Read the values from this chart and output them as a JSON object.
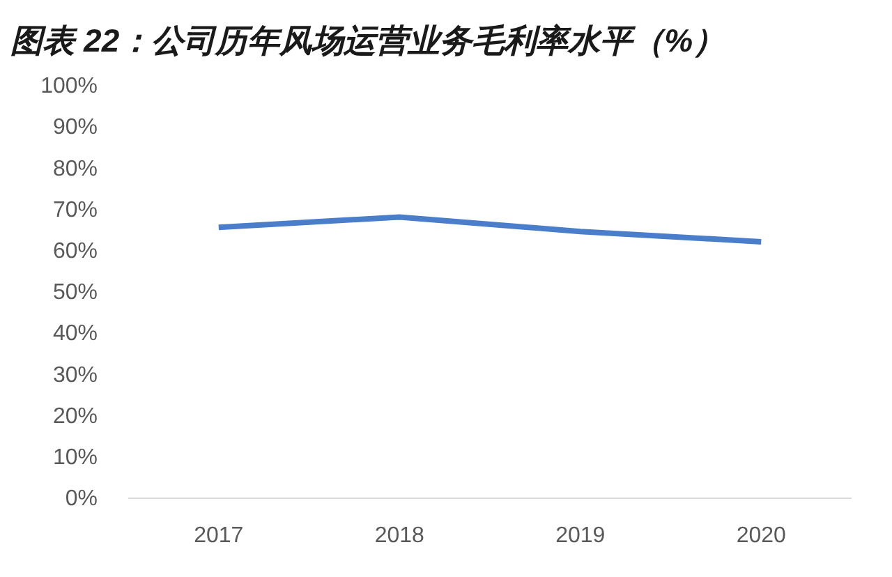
{
  "chart_data": {
    "type": "line",
    "title": "图表 22：公司历年风场运营业务毛利率水平（%）",
    "categories": [
      "2017",
      "2018",
      "2019",
      "2020"
    ],
    "series": [
      {
        "color": "#4a7ecb",
        "values": [
          65.5,
          68,
          64.5,
          62
        ]
      }
    ],
    "ylim": [
      0,
      100
    ],
    "yticks": [
      {
        "value": 0,
        "label": "0%"
      },
      {
        "value": 10,
        "label": "10%"
      },
      {
        "value": 20,
        "label": "20%"
      },
      {
        "value": 30,
        "label": "30%"
      },
      {
        "value": 40,
        "label": "40%"
      },
      {
        "value": 50,
        "label": "50%"
      },
      {
        "value": 60,
        "label": "60%"
      },
      {
        "value": 70,
        "label": "70%"
      },
      {
        "value": 80,
        "label": "80%"
      },
      {
        "value": 90,
        "label": "90%"
      },
      {
        "value": 100,
        "label": "100%"
      }
    ],
    "grid": false,
    "marker": "none",
    "line_style": "solid"
  }
}
